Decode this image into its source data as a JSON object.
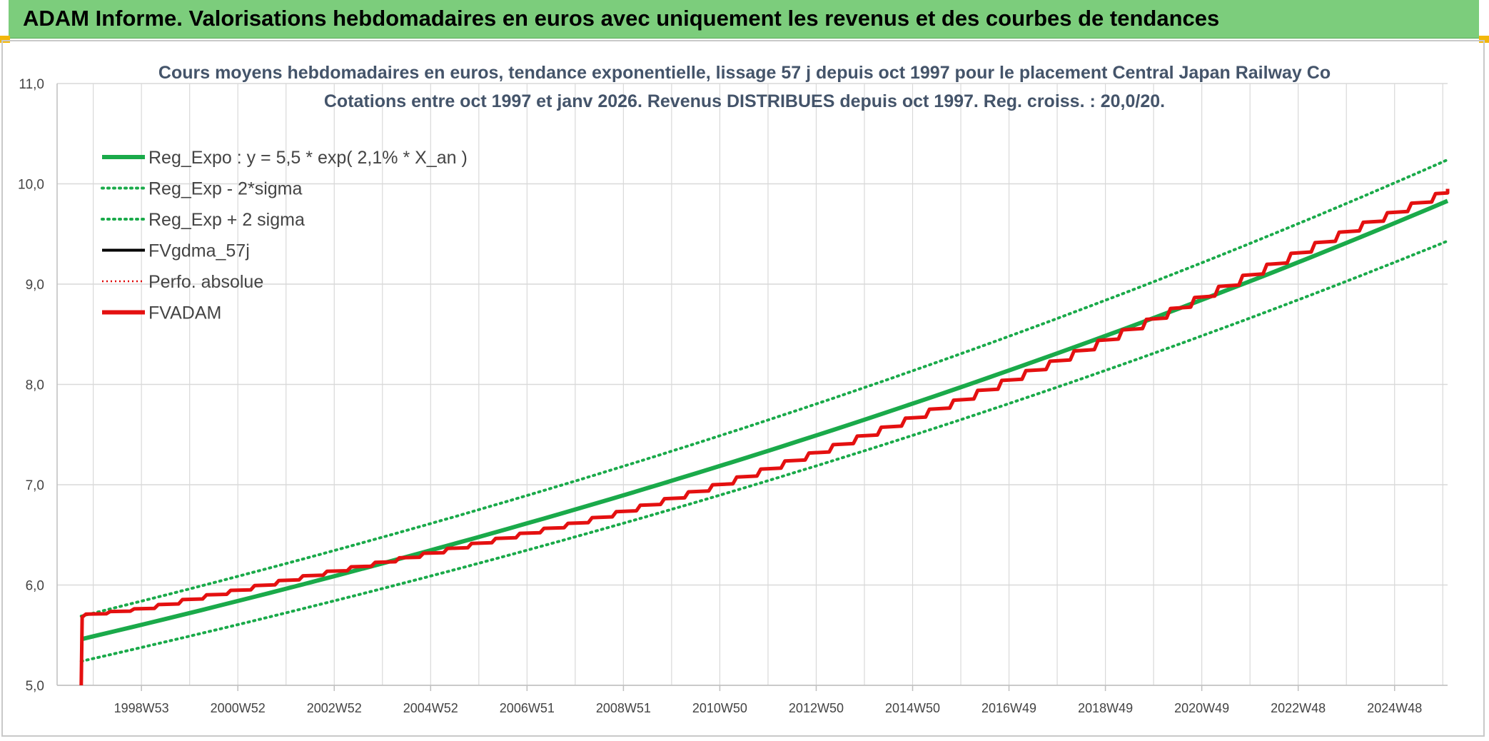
{
  "banner": {
    "title": "ADAM Informe. Valorisations hebdomadaires en euros avec uniquement les revenus et des courbes de tendances"
  },
  "colors": {
    "banner_bg": "#7ccd7c",
    "reg_expo": "#1aaa4a",
    "reg_bands": "#1aaa4a",
    "fvgdma": "#000000",
    "perfo": "#e00000",
    "fvadam": "#e41010",
    "grid": "#d9d9d9"
  },
  "chart_data": {
    "type": "line",
    "title_line1": "Cours moyens hebdomadaires en euros, tendance exponentielle, lissage 57 j depuis oct 1997 pour le placement Central Japan Railway Co",
    "title_line2": "Cotations entre oct 1997 et janv 2026. Revenus DISTRIBUES depuis oct 1997. Reg. croiss. : 20,0/20.",
    "xlabel": "",
    "ylabel": "",
    "ylim": [
      5.0,
      11.0
    ],
    "xlim": [
      1997.25,
      2026.1
    ],
    "y_ticks": [
      "5,0",
      "6,0",
      "7,0",
      "8,0",
      "9,0",
      "10,0",
      "11,0"
    ],
    "x_ticks": [
      {
        "label": "1998W53",
        "x": 1999.0
      },
      {
        "label": "2000W52",
        "x": 2001.0
      },
      {
        "label": "2002W52",
        "x": 2003.0
      },
      {
        "label": "2004W52",
        "x": 2005.0
      },
      {
        "label": "2006W51",
        "x": 2007.0
      },
      {
        "label": "2008W51",
        "x": 2009.0
      },
      {
        "label": "2010W50",
        "x": 2011.0
      },
      {
        "label": "2012W50",
        "x": 2013.0
      },
      {
        "label": "2014W50",
        "x": 2015.0
      },
      {
        "label": "2016W49",
        "x": 2017.0
      },
      {
        "label": "2018W49",
        "x": 2019.0
      },
      {
        "label": "2020W49",
        "x": 2021.0
      },
      {
        "label": "2022W48",
        "x": 2023.0
      },
      {
        "label": "2024W48",
        "x": 2025.0
      }
    ],
    "grid": true,
    "legend_position": "top-left",
    "series": [
      {
        "name": "Reg_Expo : y = 5,5 * exp( 2,1% *  X_an )",
        "style": "solid-thick",
        "color": "#1aaa4a",
        "points": [
          [
            1997.75,
            5.46
          ],
          [
            2026.1,
            9.83
          ]
        ]
      },
      {
        "name": "Reg_Exp - 2*sigma",
        "style": "dotted",
        "color": "#1aaa4a",
        "points": [
          [
            1997.75,
            5.24
          ],
          [
            2026.1,
            9.43
          ]
        ]
      },
      {
        "name": "Reg_Exp + 2 sigma",
        "style": "dotted",
        "color": "#1aaa4a",
        "points": [
          [
            1997.75,
            5.69
          ],
          [
            2026.1,
            10.24
          ]
        ]
      },
      {
        "name": "FVgdma_57j",
        "style": "solid",
        "color": "#000000",
        "points": [
          [
            1997.85,
            5.71
          ],
          [
            2026.1,
            9.95
          ]
        ]
      },
      {
        "name": "Perfo. absolue",
        "style": "dotted-thin",
        "color": "#e00000",
        "points": []
      },
      {
        "name": "FVADAM",
        "style": "solid-thick",
        "color": "#e41010",
        "points": [
          [
            1997.75,
            5.0
          ],
          [
            1997.77,
            5.68
          ],
          [
            1997.85,
            5.71
          ],
          [
            1999.0,
            5.77
          ],
          [
            2000.0,
            5.87
          ],
          [
            2001.0,
            5.96
          ],
          [
            2002.0,
            6.06
          ],
          [
            2003.0,
            6.15
          ],
          [
            2004.0,
            6.24
          ],
          [
            2005.0,
            6.33
          ],
          [
            2006.0,
            6.43
          ],
          [
            2007.0,
            6.53
          ],
          [
            2008.0,
            6.63
          ],
          [
            2009.0,
            6.75
          ],
          [
            2010.0,
            6.88
          ],
          [
            2011.0,
            7.02
          ],
          [
            2012.0,
            7.18
          ],
          [
            2013.0,
            7.34
          ],
          [
            2014.0,
            7.51
          ],
          [
            2015.0,
            7.69
          ],
          [
            2016.0,
            7.87
          ],
          [
            2017.0,
            8.07
          ],
          [
            2018.0,
            8.26
          ],
          [
            2019.0,
            8.47
          ],
          [
            2020.0,
            8.68
          ],
          [
            2021.0,
            8.9
          ],
          [
            2022.0,
            9.12
          ],
          [
            2023.0,
            9.34
          ],
          [
            2024.0,
            9.55
          ],
          [
            2025.0,
            9.74
          ],
          [
            2026.1,
            9.95
          ]
        ]
      }
    ]
  }
}
